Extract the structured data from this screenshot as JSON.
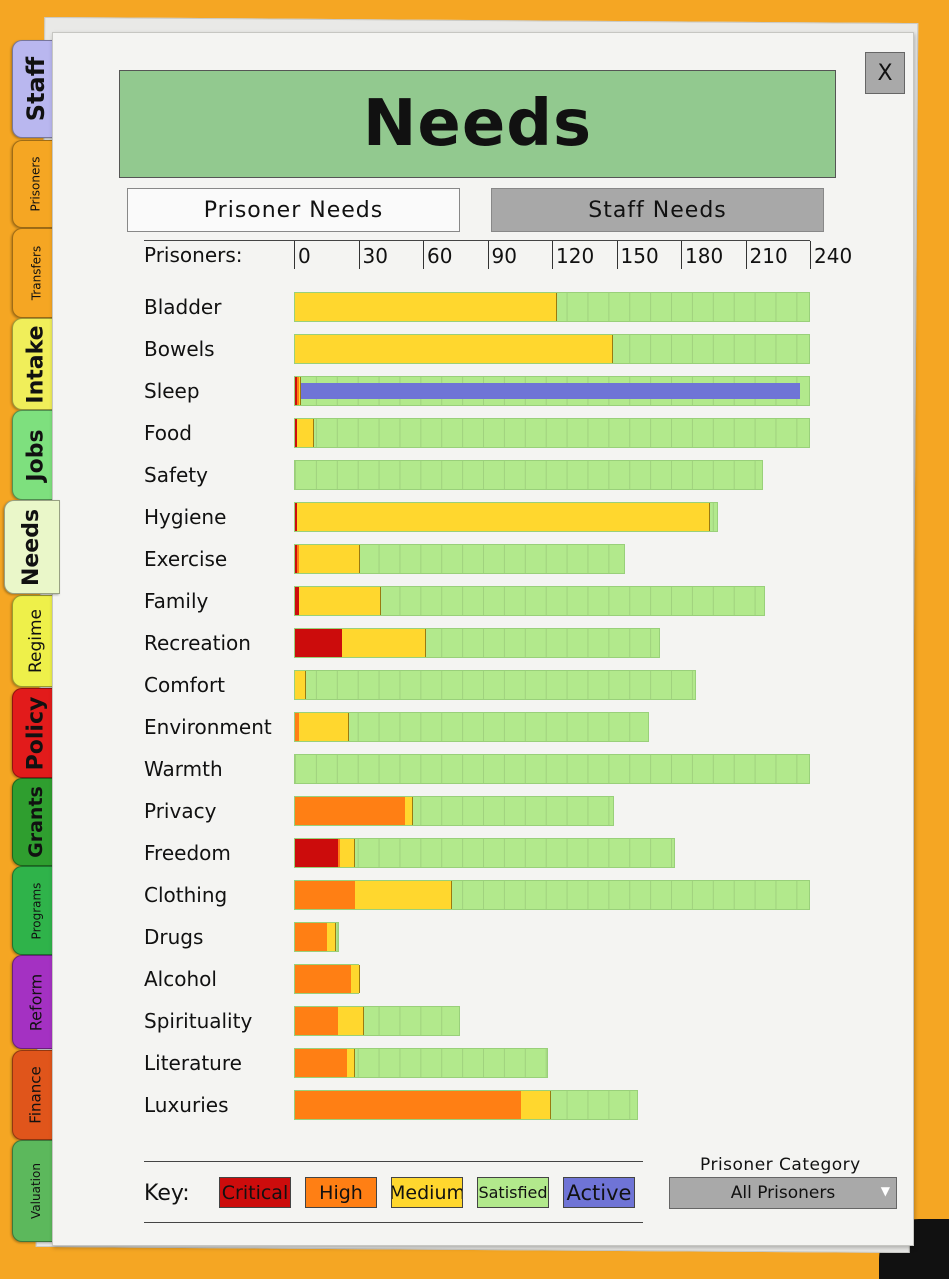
{
  "tabs": [
    {
      "label": "Staff",
      "color": "#b9b7ef",
      "top": 0
    },
    {
      "label": "Prisoners",
      "color": "#f5a623"
    },
    {
      "label": "Transfers",
      "color": "#f5a623"
    },
    {
      "label": "Intake",
      "color": "#f0ee5a"
    },
    {
      "label": "Jobs",
      "color": "#7ee07e"
    },
    {
      "label": "Needs",
      "color": "#eaf7c9"
    },
    {
      "label": "Regime",
      "color": "#eef04a"
    },
    {
      "label": "Policy",
      "color": "#e21b1b"
    },
    {
      "label": "Grants",
      "color": "#2f9e2f"
    },
    {
      "label": "Programs",
      "color": "#2fb34a"
    },
    {
      "label": "Reform",
      "color": "#a431c2"
    },
    {
      "label": "Finance",
      "color": "#e0551b"
    },
    {
      "label": "Valuation",
      "color": "#5cb85c"
    }
  ],
  "active_tab": "Needs",
  "close_label": "X",
  "title": "Needs",
  "toggles": {
    "prisoner": "Prisoner Needs",
    "staff": "Staff Needs"
  },
  "axis": {
    "label": "Prisoners:",
    "ticks": [
      "0",
      "30",
      "60",
      "90",
      "120",
      "150",
      "180",
      "210",
      "240"
    ],
    "max": 240
  },
  "colors": {
    "critical": "#cc0c0c",
    "high": "#ff7f14",
    "medium": "#ffd72e",
    "satisfied": "#b2e98c",
    "active": "#6f74d6"
  },
  "chart_data": {
    "type": "bar",
    "orientation": "horizontal",
    "stacked": true,
    "xlim": [
      0,
      240
    ],
    "xlabel": "Prisoners:",
    "series_names": [
      "Critical",
      "High",
      "Medium",
      "Satisfied"
    ],
    "rows": [
      {
        "label": "Bladder",
        "critical": 0,
        "high": 0,
        "medium": 122,
        "satisfied": 118
      },
      {
        "label": "Bowels",
        "critical": 0,
        "high": 0,
        "medium": 148,
        "satisfied": 92
      },
      {
        "label": "Sleep",
        "critical": 1,
        "high": 1,
        "medium": 1,
        "satisfied": 237,
        "active": 232
      },
      {
        "label": "Food",
        "critical": 1,
        "high": 0,
        "medium": 8,
        "satisfied": 231
      },
      {
        "label": "Safety",
        "critical": 0,
        "high": 0,
        "medium": 0,
        "satisfied": 218
      },
      {
        "label": "Hygiene",
        "critical": 1,
        "high": 0,
        "medium": 192,
        "satisfied": 4
      },
      {
        "label": "Exercise",
        "critical": 1,
        "high": 1,
        "medium": 28,
        "satisfied": 124
      },
      {
        "label": "Family",
        "critical": 2,
        "high": 0,
        "medium": 38,
        "satisfied": 179
      },
      {
        "label": "Recreation",
        "critical": 22,
        "high": 0,
        "medium": 39,
        "satisfied": 109
      },
      {
        "label": "Comfort",
        "critical": 0,
        "high": 0,
        "medium": 5,
        "satisfied": 182
      },
      {
        "label": "Environment",
        "critical": 0,
        "high": 2,
        "medium": 23,
        "satisfied": 140
      },
      {
        "label": "Warmth",
        "critical": 0,
        "high": 0,
        "medium": 0,
        "satisfied": 240
      },
      {
        "label": "Privacy",
        "critical": 0,
        "high": 51,
        "medium": 4,
        "satisfied": 94
      },
      {
        "label": "Freedom",
        "critical": 20,
        "high": 1,
        "medium": 7,
        "satisfied": 149
      },
      {
        "label": "Clothing",
        "critical": 0,
        "high": 28,
        "medium": 45,
        "satisfied": 167
      },
      {
        "label": "Drugs",
        "critical": 0,
        "high": 15,
        "medium": 4,
        "satisfied": 2
      },
      {
        "label": "Alcohol",
        "critical": 0,
        "high": 26,
        "medium": 4,
        "satisfied": 0
      },
      {
        "label": "Spirituality",
        "critical": 0,
        "high": 20,
        "medium": 12,
        "satisfied": 45
      },
      {
        "label": "Literature",
        "critical": 0,
        "high": 24,
        "medium": 4,
        "satisfied": 90
      },
      {
        "label": "Luxuries",
        "critical": 0,
        "high": 105,
        "medium": 14,
        "satisfied": 41
      }
    ]
  },
  "key": {
    "label": "Key:",
    "items": [
      {
        "label": "Critical",
        "color": "#cc0c0c"
      },
      {
        "label": "High",
        "color": "#ff7f14"
      },
      {
        "label": "Medium",
        "color": "#ffd72e"
      },
      {
        "label": "Satisfied",
        "color": "#b2e98c"
      },
      {
        "label": "Active",
        "color": "#6f74d6"
      }
    ]
  },
  "category": {
    "label": "Prisoner Category",
    "value": "All Prisoners",
    "arrow": "▼"
  }
}
